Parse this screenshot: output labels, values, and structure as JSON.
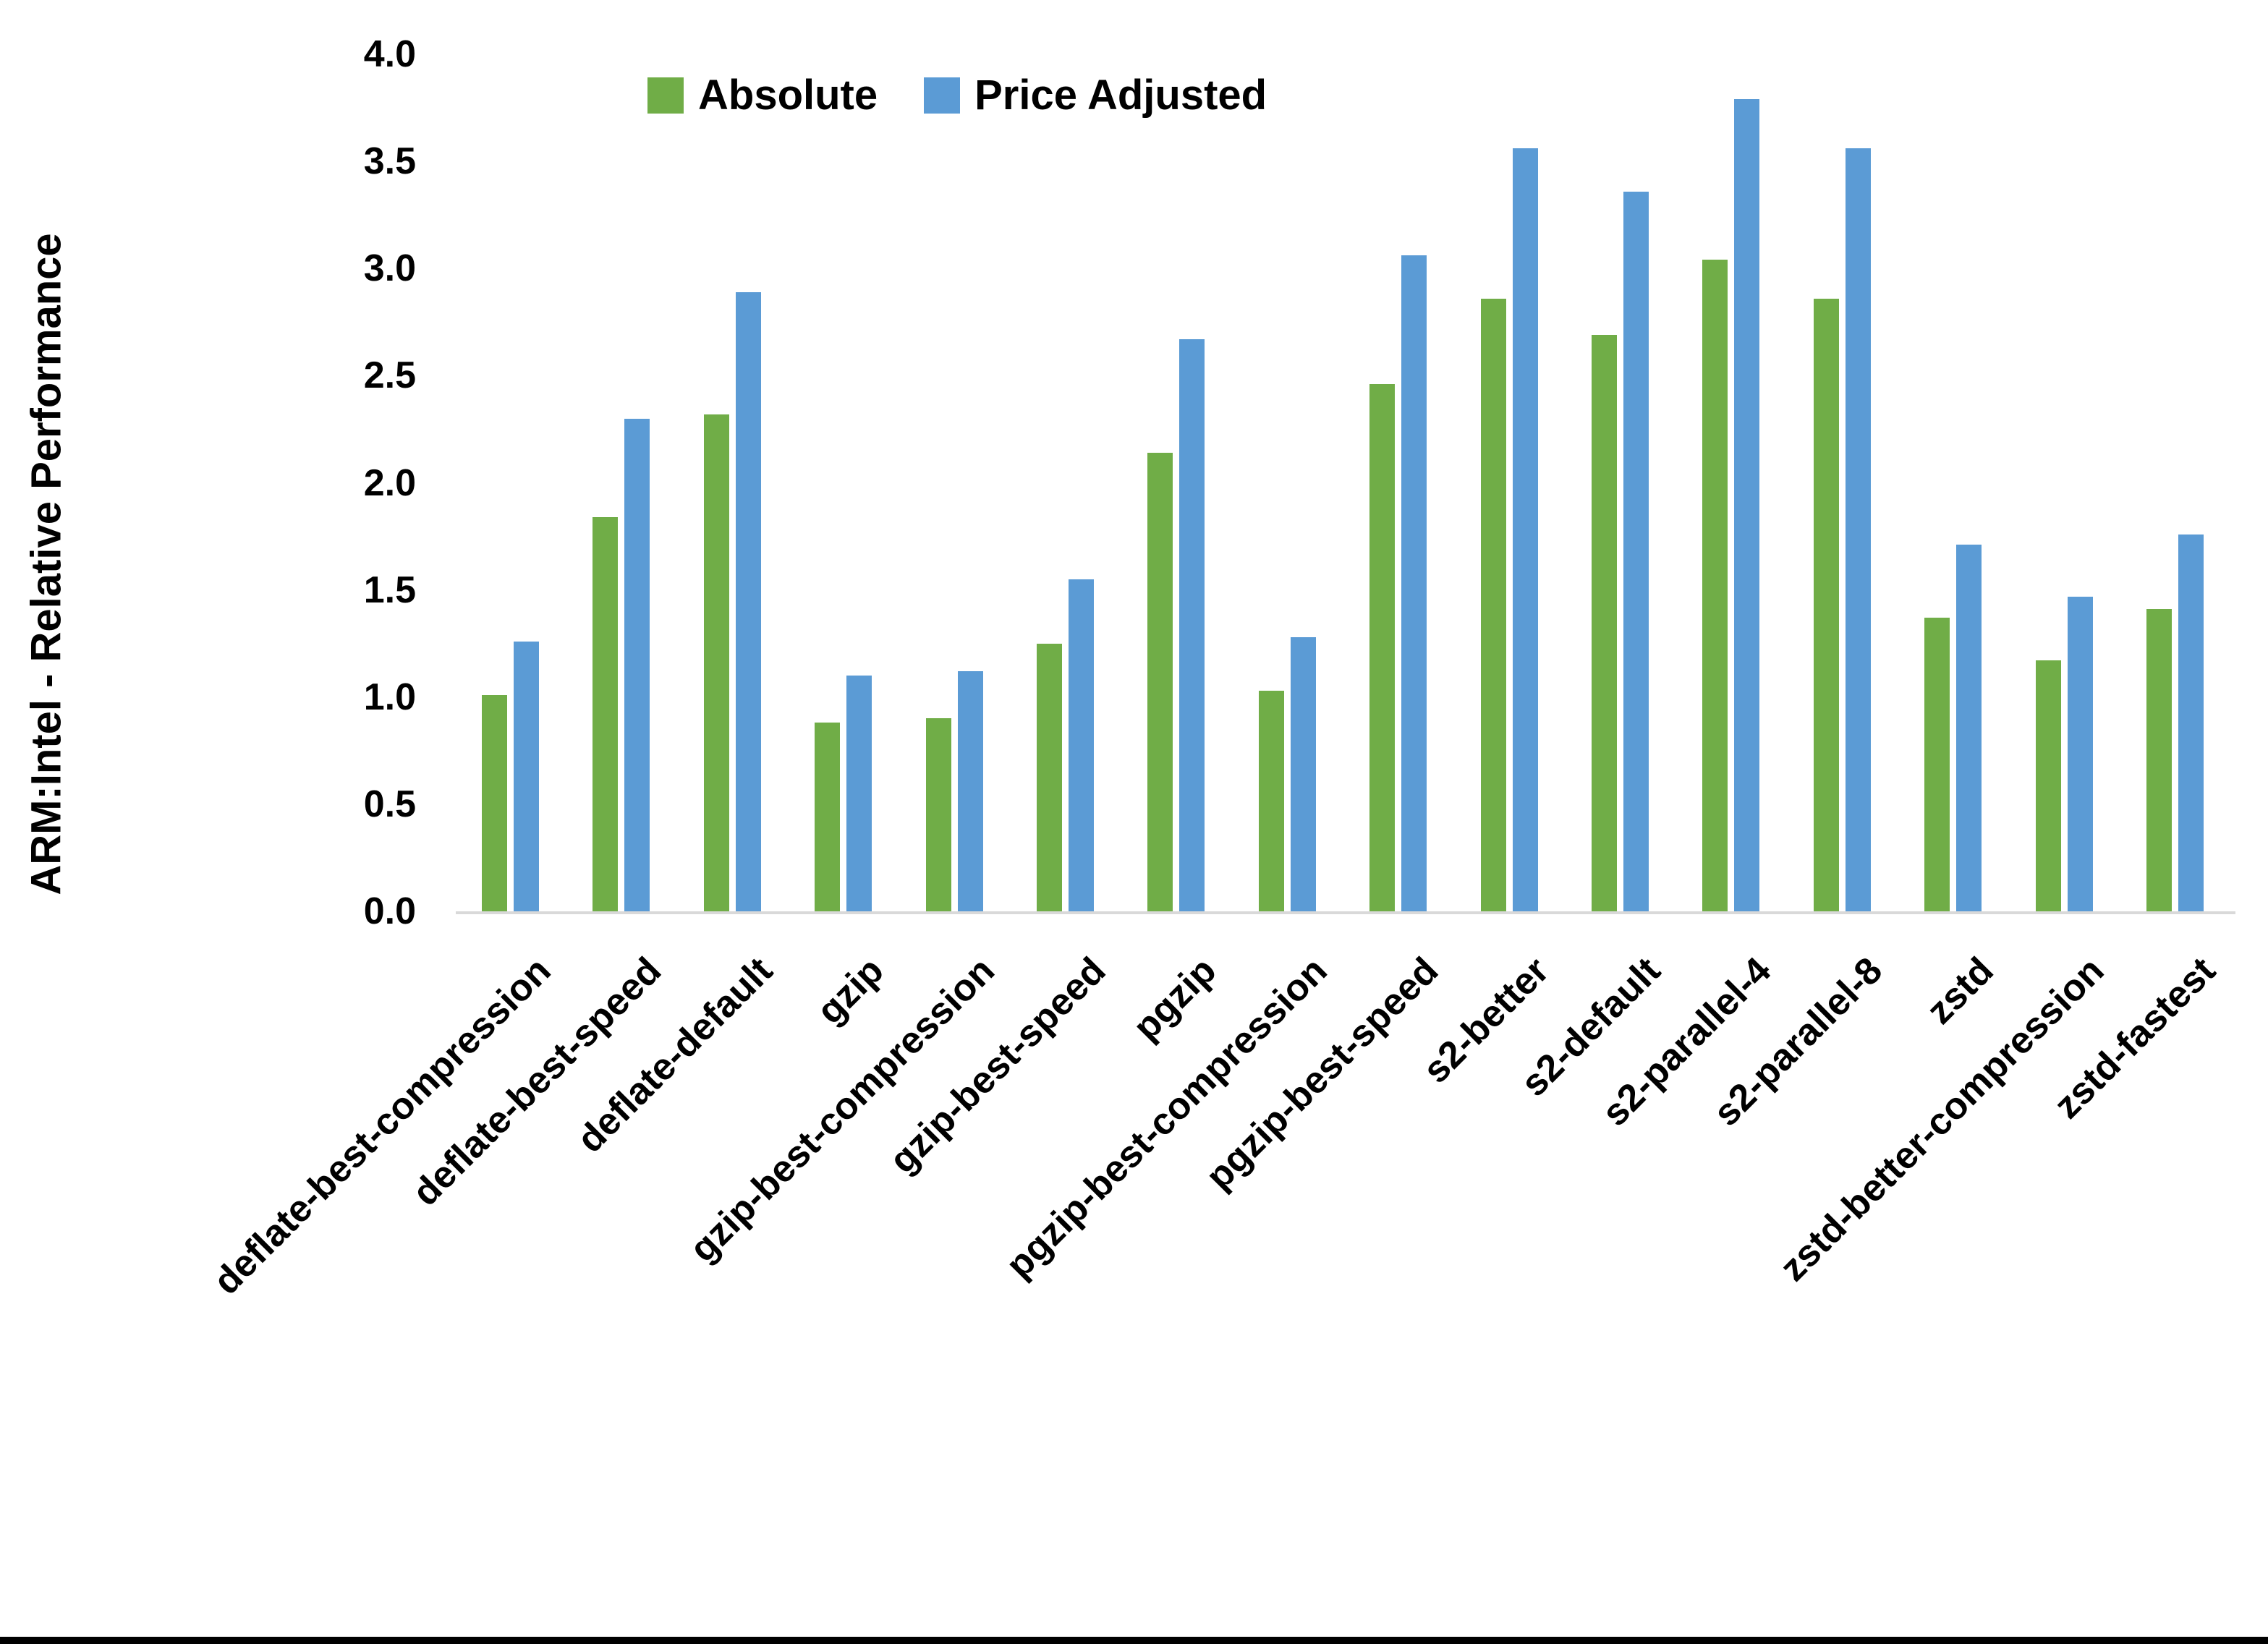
{
  "chart_data": {
    "type": "bar",
    "title": "",
    "xlabel": "",
    "ylabel": "ARM:Intel - Relative Performance",
    "ylim": [
      0.0,
      4.0
    ],
    "ytick_step": 0.5,
    "ytick_labels": [
      "0.0",
      "0.5",
      "1.0",
      "1.5",
      "2.0",
      "2.5",
      "3.0",
      "3.5",
      "4.0"
    ],
    "grid": false,
    "legend_position": "top-center-inside",
    "categories": [
      "deflate-best-compression",
      "deflate-best-speed",
      "deflate-default",
      "gzip",
      "gzip-best-compression",
      "gzip-best-speed",
      "pgzip",
      "pgzip-best-compression",
      "pgzip-best-speed",
      "s2-better",
      "s2-default",
      "s2-parallel-4",
      "s2-parallel-8",
      "zstd",
      "zstd-better-compression",
      "zstd-fastest"
    ],
    "series": [
      {
        "name": "Absolute",
        "color": "#70AD47",
        "values": [
          1.01,
          1.84,
          2.32,
          0.88,
          0.9,
          1.25,
          2.14,
          1.03,
          2.46,
          2.86,
          2.69,
          3.04,
          2.86,
          1.37,
          1.17,
          1.41
        ]
      },
      {
        "name": "Price Adjusted",
        "color": "#5B9BD5",
        "values": [
          1.26,
          2.3,
          2.89,
          1.1,
          1.12,
          1.55,
          2.67,
          1.28,
          3.06,
          3.56,
          3.36,
          3.79,
          3.56,
          1.71,
          1.47,
          1.76
        ]
      }
    ]
  },
  "legend": {
    "items": [
      {
        "label": "Absolute",
        "color": "#70AD47"
      },
      {
        "label": "Price Adjusted",
        "color": "#5B9BD5"
      }
    ]
  },
  "axis": {
    "baseline_color": "#D9D9D9",
    "text_color": "#000000"
  },
  "page": {
    "background": "#FFFFFF",
    "bottom_edge_bar_color": "#000000"
  }
}
